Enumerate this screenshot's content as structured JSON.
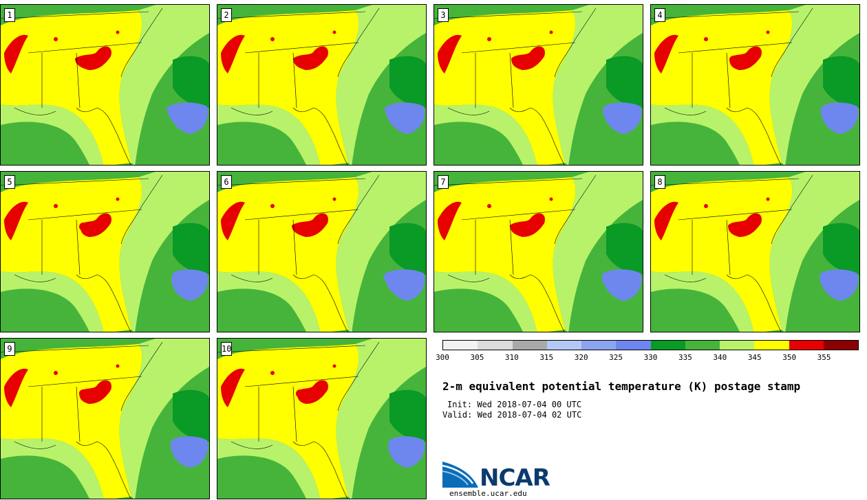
{
  "figure": {
    "title": "2-m equivalent potential temperature (K) postage stamp",
    "init": "Init: Wed 2018-07-04 00 UTC",
    "valid": "Valid: Wed 2018-07-04 02 UTC",
    "logo_text": "NCAR",
    "url": "ensemble.ucar.edu"
  },
  "members": [
    "1",
    "2",
    "3",
    "4",
    "5",
    "6",
    "7",
    "8",
    "9",
    "10"
  ],
  "colorbar": {
    "colors": [
      "#f2f2f2",
      "#dcdcdc",
      "#a9a9a9",
      "#b4c8f5",
      "#8ca5f0",
      "#6e87ee",
      "#0a9a26",
      "#46b43a",
      "#b8f26a",
      "#ffff00",
      "#e60000",
      "#8b0000"
    ],
    "labels": [
      "300",
      "305",
      "310",
      "315",
      "320",
      "325",
      "330",
      "335",
      "340",
      "345",
      "350",
      "355"
    ]
  },
  "map_colors": {
    "land_green": "#46b43a",
    "dark_green": "#0a9a26",
    "light_green": "#b8f26a",
    "yellow": "#ffff00",
    "red": "#e60000",
    "blue": "#6e87ee"
  }
}
